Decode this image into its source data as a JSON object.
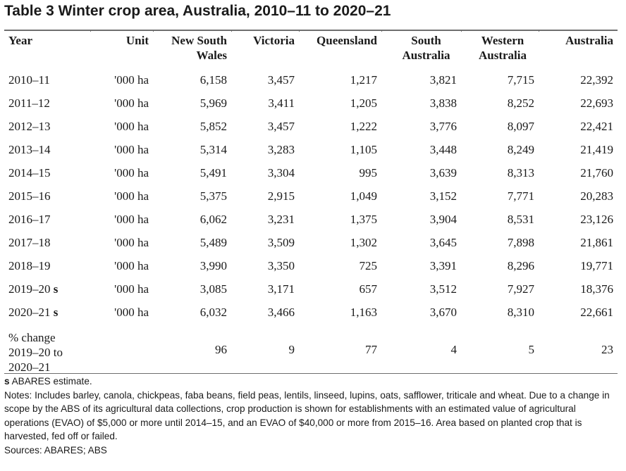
{
  "title": "Table 3 Winter crop area, Australia, 2010–11 to 2020–21",
  "columns": [
    {
      "line1": "Year",
      "line2": ""
    },
    {
      "line1": "Unit",
      "line2": ""
    },
    {
      "line1": "New South",
      "line2": "Wales"
    },
    {
      "line1": "Victoria",
      "line2": ""
    },
    {
      "line1": "Queensland",
      "line2": ""
    },
    {
      "line1": "South",
      "line2": "Australia"
    },
    {
      "line1": "Western",
      "line2": "Australia"
    },
    {
      "line1": "Australia",
      "line2": ""
    }
  ],
  "rows": [
    {
      "year": "2010–11",
      "s": "",
      "unit": "'000 ha",
      "nsw": "6,158",
      "vic": "3,457",
      "qld": "1,217",
      "sa": "3,821",
      "wa": "7,715",
      "aus": "22,392"
    },
    {
      "year": "2011–12",
      "s": "",
      "unit": "'000 ha",
      "nsw": "5,969",
      "vic": "3,411",
      "qld": "1,205",
      "sa": "3,838",
      "wa": "8,252",
      "aus": "22,693"
    },
    {
      "year": "2012–13",
      "s": "",
      "unit": "'000 ha",
      "nsw": "5,852",
      "vic": "3,457",
      "qld": "1,222",
      "sa": "3,776",
      "wa": "8,097",
      "aus": "22,421"
    },
    {
      "year": "2013–14",
      "s": "",
      "unit": "'000 ha",
      "nsw": "5,314",
      "vic": "3,283",
      "qld": "1,105",
      "sa": "3,448",
      "wa": "8,249",
      "aus": "21,419"
    },
    {
      "year": "2014–15",
      "s": "",
      "unit": "'000 ha",
      "nsw": "5,491",
      "vic": "3,304",
      "qld": "995",
      "sa": "3,639",
      "wa": "8,313",
      "aus": "21,760"
    },
    {
      "year": "2015–16",
      "s": "",
      "unit": "'000 ha",
      "nsw": "5,375",
      "vic": "2,915",
      "qld": "1,049",
      "sa": "3,152",
      "wa": "7,771",
      "aus": "20,283"
    },
    {
      "year": "2016–17",
      "s": "",
      "unit": "'000 ha",
      "nsw": "6,062",
      "vic": "3,231",
      "qld": "1,375",
      "sa": "3,904",
      "wa": "8,531",
      "aus": "23,126"
    },
    {
      "year": "2017–18",
      "s": "",
      "unit": "'000 ha",
      "nsw": "5,489",
      "vic": "3,509",
      "qld": "1,302",
      "sa": "3,645",
      "wa": "7,898",
      "aus": "21,861"
    },
    {
      "year": "2018–19",
      "s": "",
      "unit": "'000 ha",
      "nsw": "3,990",
      "vic": "3,350",
      "qld": "725",
      "sa": "3,391",
      "wa": "8,296",
      "aus": "19,771"
    },
    {
      "year": "2019–20",
      "s": "s",
      "unit": "'000 ha",
      "nsw": "3,085",
      "vic": "3,171",
      "qld": "657",
      "sa": "3,512",
      "wa": "7,927",
      "aus": "18,376"
    },
    {
      "year": "2020–21",
      "s": "s",
      "unit": "'000 ha",
      "nsw": "6,032",
      "vic": "3,466",
      "qld": "1,163",
      "sa": "3,670",
      "wa": "8,310",
      "aus": "22,661"
    }
  ],
  "pct_change": {
    "label_lines": [
      "% change",
      "2019–20 to",
      "2020–21"
    ],
    "unit": "",
    "nsw": "96",
    "vic": "9",
    "qld": "77",
    "sa": "4",
    "wa": "5",
    "aus": "23"
  },
  "notes": {
    "s_marker": "s",
    "s_text": " ABARES estimate.",
    "line_notes": "Notes: Includes barley, canola, chickpeas, faba beans, field peas, lentils, linseed, lupins, oats, safflower, triticale and wheat. Due to a change in scope by the ABS of its agricultural data collections, crop production is shown for establishments with an estimated value of agricultural operations (EVAO) of $5,000 or more until 2014–15, and an EVAO of $40,000 or more from 2015–16. Area based on planted crop that is harvested, fed off or failed.",
    "sources": "Sources: ABARES; ABS"
  }
}
